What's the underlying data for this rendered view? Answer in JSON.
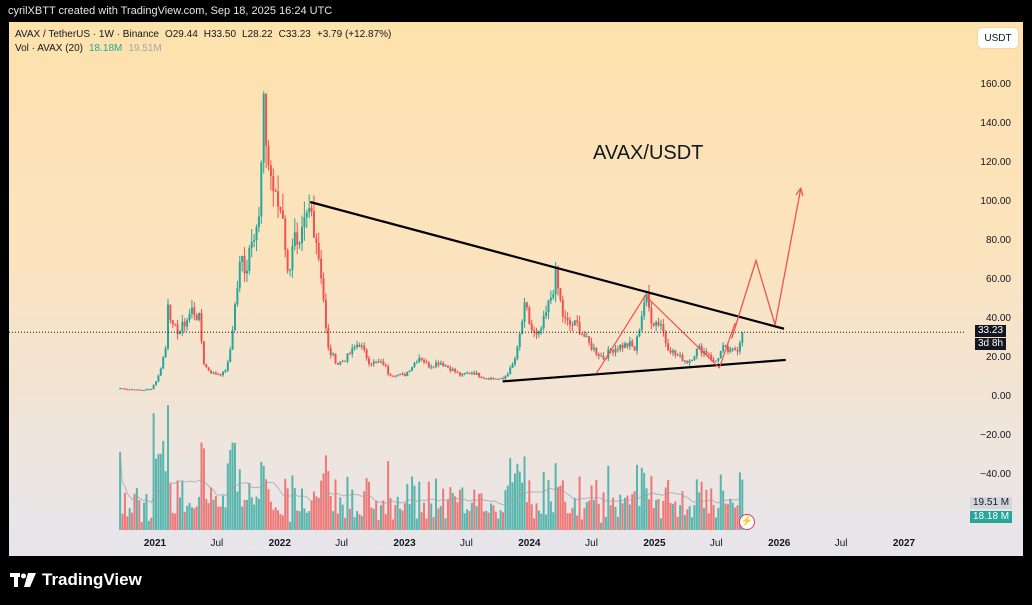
{
  "header": {
    "credit": "cyrilXBTT created with TradingView.com, Sep 18, 2025 16:24 UTC"
  },
  "legend": {
    "symbol": "AVAX / TetherUS · 1W · Binance",
    "open": "O29.44",
    "high": "H33.50",
    "low": "L28.22",
    "close": "C33.23",
    "change": "+3.79 (+12.87%)",
    "vol_label": "Vol · AVAX (20)",
    "vol_value": "18.18M",
    "vol_ma": "19.51M"
  },
  "currency_button": "USDT",
  "annotation_title": "AVAX/USDT",
  "price_tag": {
    "price": "33.23",
    "countdown": "3d 8h"
  },
  "volume_tags": {
    "ma": "19.51 M",
    "current": "18.18 M"
  },
  "footer": {
    "brand": "TradingView"
  },
  "colors": {
    "up": "#26a69a",
    "down": "#ef5350",
    "trendline": "#000000",
    "projection": "#ef5350"
  },
  "chart_data": {
    "type": "candlestick",
    "title": "AVAX/USDT",
    "y_axis_ticks": [
      "160.00",
      "140.00",
      "120.00",
      "100.00",
      "80.00",
      "60.00",
      "40.00",
      "20.00",
      "0.00",
      "−20.00",
      "−40.00"
    ],
    "ylim": [
      -70,
      178
    ],
    "x_axis_ticks": [
      "2021",
      "Jul",
      "2022",
      "Jul",
      "2023",
      "Jul",
      "2024",
      "Jul",
      "2025",
      "Jul",
      "2026",
      "Jul",
      "2027"
    ],
    "price_path": [
      [
        "2020-09-21",
        4.5
      ],
      [
        "2020-11-15",
        3.5
      ],
      [
        "2020-12-20",
        4
      ],
      [
        "2021-01-10",
        10
      ],
      [
        "2021-02-01",
        25
      ],
      [
        "2021-02-08",
        50
      ],
      [
        "2021-02-22",
        35
      ],
      [
        "2021-03-15",
        34
      ],
      [
        "2021-04-05",
        40
      ],
      [
        "2021-04-20",
        45
      ],
      [
        "2021-05-10",
        40
      ],
      [
        "2021-05-25",
        16
      ],
      [
        "2021-06-20",
        12
      ],
      [
        "2021-07-20",
        12
      ],
      [
        "2021-08-05",
        18
      ],
      [
        "2021-08-25",
        50
      ],
      [
        "2021-09-10",
        72
      ],
      [
        "2021-09-25",
        65
      ],
      [
        "2021-10-10",
        85
      ],
      [
        "2021-11-01",
        90
      ],
      [
        "2021-11-15",
        145
      ],
      [
        "2021-11-29",
        120
      ],
      [
        "2021-12-20",
        100
      ],
      [
        "2022-01-10",
        95
      ],
      [
        "2022-01-25",
        60
      ],
      [
        "2022-02-10",
        85
      ],
      [
        "2022-02-25",
        70
      ],
      [
        "2022-03-10",
        85
      ],
      [
        "2022-04-01",
        97
      ],
      [
        "2022-04-15",
        85
      ],
      [
        "2022-05-05",
        60
      ],
      [
        "2022-05-20",
        25
      ],
      [
        "2022-06-20",
        17
      ],
      [
        "2022-07-15",
        20
      ],
      [
        "2022-08-20",
        28
      ],
      [
        "2022-09-20",
        18
      ],
      [
        "2022-11-01",
        17
      ],
      [
        "2022-11-15",
        12
      ],
      [
        "2022-12-31",
        11
      ],
      [
        "2023-02-15",
        21
      ],
      [
        "2023-03-10",
        16
      ],
      [
        "2023-04-15",
        18
      ],
      [
        "2023-06-15",
        11
      ],
      [
        "2023-07-15",
        13
      ],
      [
        "2023-08-20",
        10
      ],
      [
        "2023-10-15",
        9
      ],
      [
        "2023-11-10",
        15
      ],
      [
        "2023-11-25",
        22
      ],
      [
        "2023-12-10",
        38
      ],
      [
        "2023-12-20",
        47
      ],
      [
        "2024-01-05",
        35
      ],
      [
        "2024-01-25",
        30
      ],
      [
        "2024-02-15",
        40
      ],
      [
        "2024-03-05",
        52
      ],
      [
        "2024-03-18",
        62
      ],
      [
        "2024-04-10",
        40
      ],
      [
        "2024-04-25",
        37
      ],
      [
        "2024-05-20",
        37
      ],
      [
        "2024-06-20",
        28
      ],
      [
        "2024-07-10",
        24
      ],
      [
        "2024-08-05",
        20
      ],
      [
        "2024-08-25",
        24
      ],
      [
        "2024-09-20",
        26
      ],
      [
        "2024-10-20",
        27
      ],
      [
        "2024-11-05",
        24
      ],
      [
        "2024-11-20",
        38
      ],
      [
        "2024-12-05",
        52
      ],
      [
        "2024-12-12",
        48
      ],
      [
        "2024-12-25",
        39
      ],
      [
        "2025-01-20",
        38
      ],
      [
        "2025-02-05",
        27
      ],
      [
        "2025-03-01",
        22
      ],
      [
        "2025-03-20",
        20
      ],
      [
        "2025-04-10",
        18
      ],
      [
        "2025-05-10",
        25
      ],
      [
        "2025-06-10",
        22
      ],
      [
        "2025-06-25",
        17
      ],
      [
        "2025-07-20",
        25
      ],
      [
        "2025-08-10",
        23
      ],
      [
        "2025-09-01",
        25
      ],
      [
        "2025-09-15",
        33.23
      ]
    ],
    "last_close": 33.23,
    "volume_ma": "19.51M",
    "volume_current": "18.18M",
    "annotations": {
      "upper_trendline": [
        [
          "2022-03-31",
          100
        ],
        [
          "2026-01-15",
          35
        ]
      ],
      "lower_trendline": [
        [
          "2023-10-15",
          8
        ],
        [
          "2026-01-20",
          19
        ]
      ],
      "projection_path": [
        [
          "2025-08-15",
          30
        ],
        [
          "2025-10-25",
          70
        ],
        [
          "2025-12-20",
          37
        ],
        [
          "2026-03-05",
          107
        ]
      ],
      "ab_cd_pattern": [
        [
          "2024-07-15",
          12
        ],
        [
          "2024-12-05",
          52
        ],
        [
          "2025-07-10",
          15
        ],
        [
          "2025-08-25",
          38
        ]
      ]
    }
  }
}
